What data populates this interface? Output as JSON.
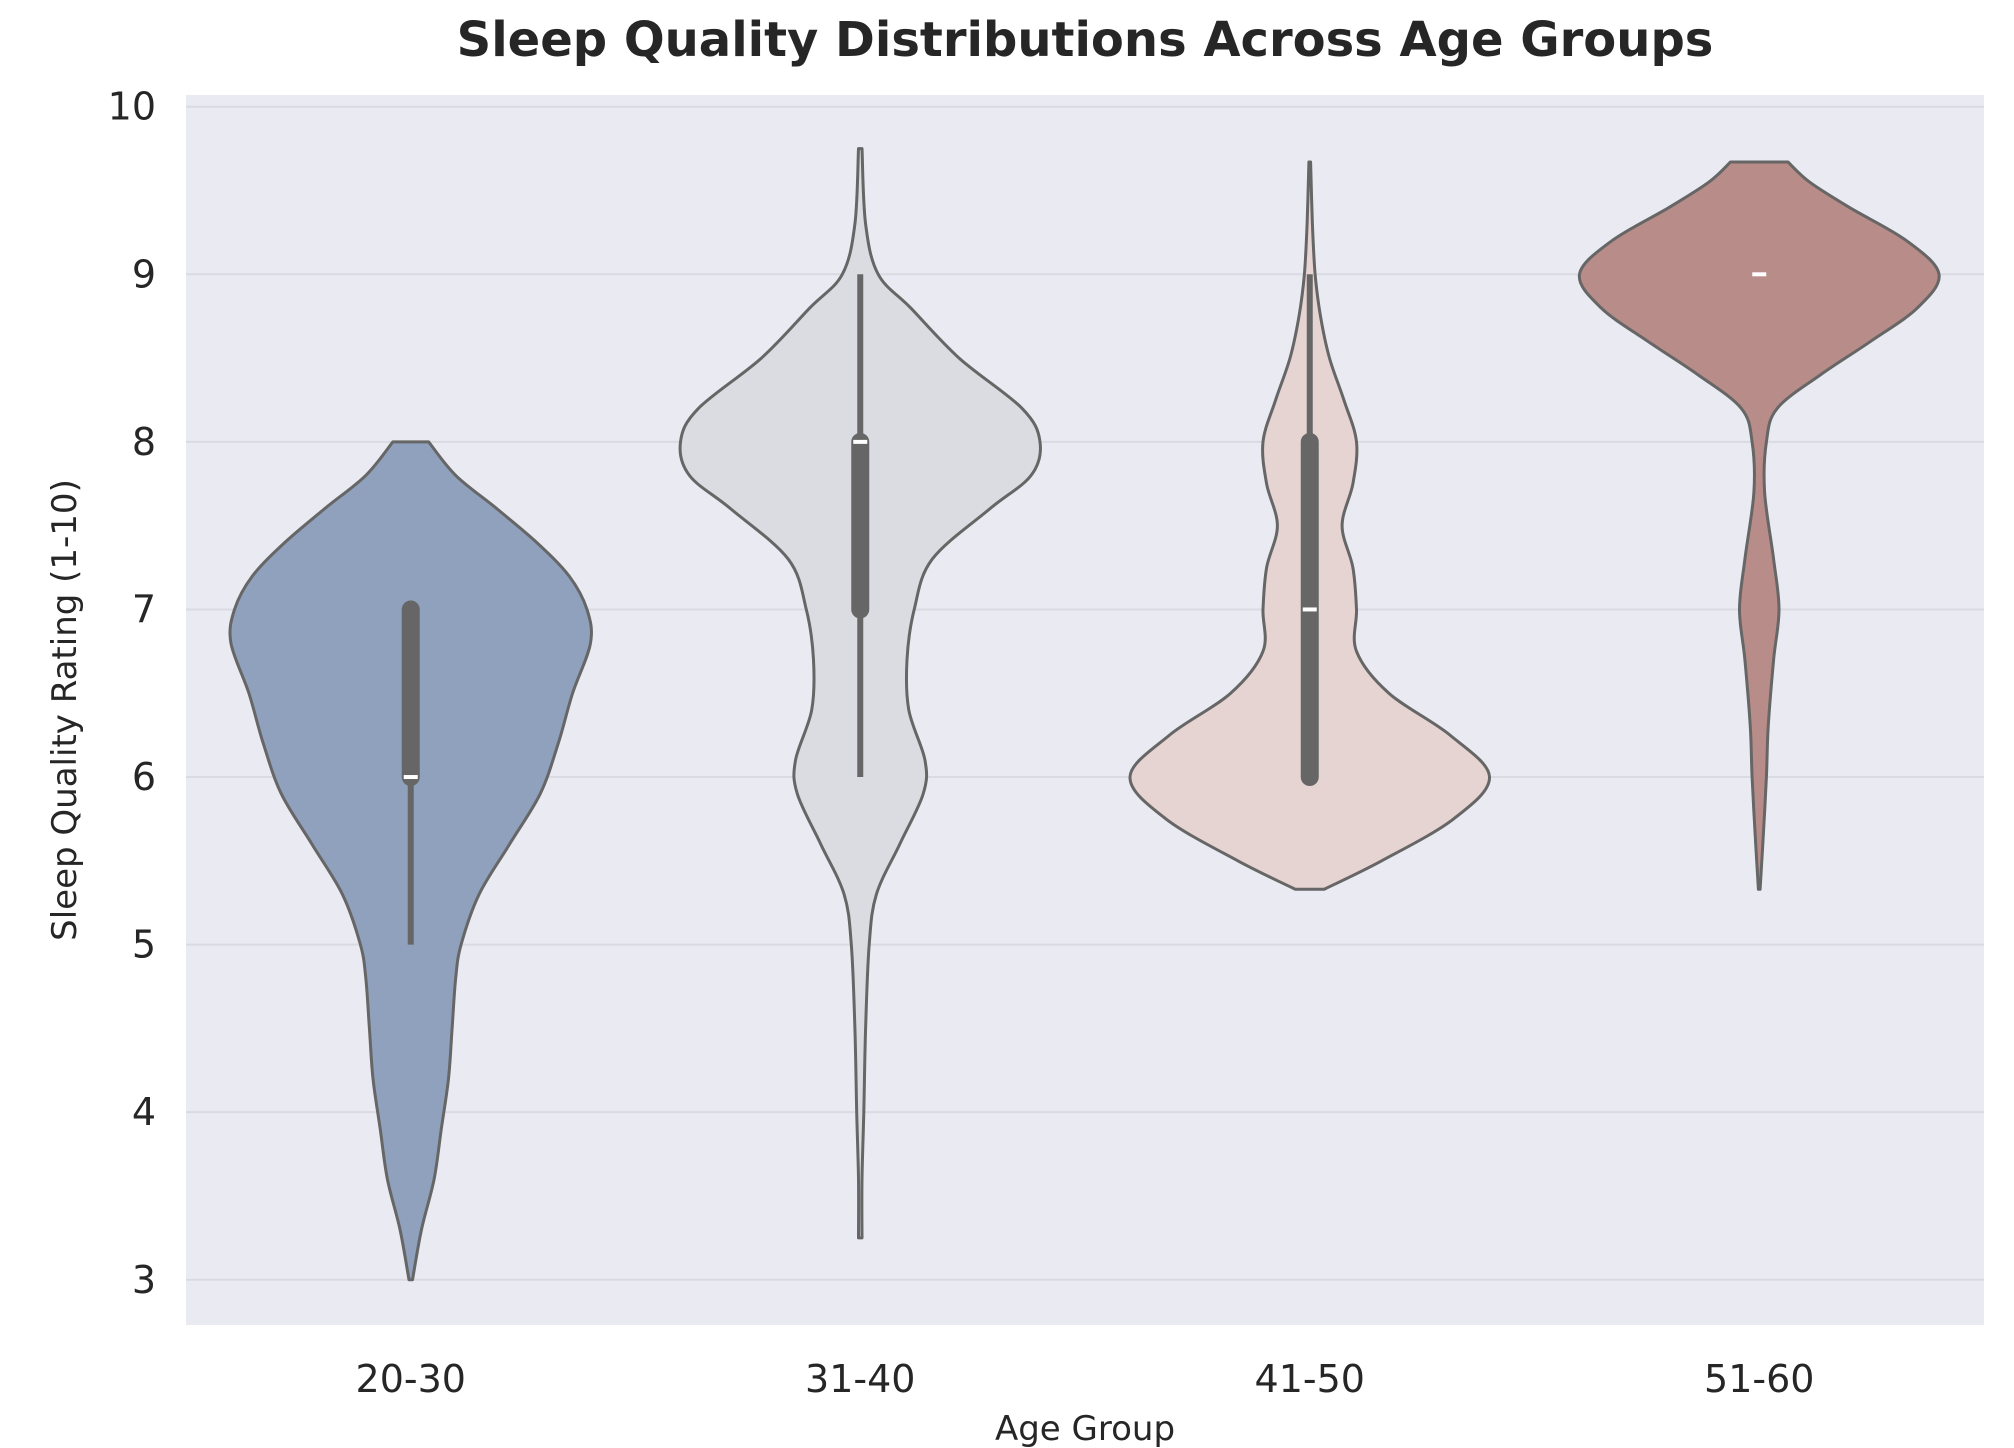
{
  "chart_data": {
    "type": "violin",
    "title": "Sleep Quality Distributions Across Age Groups",
    "xlabel": "Age Group",
    "ylabel": "Sleep Quality Rating (1-10)",
    "ylim": [
      2.73,
      10.07
    ],
    "yticks": [
      3,
      4,
      5,
      6,
      7,
      8,
      9,
      10
    ],
    "grid": "horizontal",
    "colors": {
      "plot_background": "#eaeaf2",
      "grid": "#dadae3",
      "outline": "#666666",
      "box": "#666666",
      "median": "#ffffff"
    },
    "categories": [
      {
        "label": "20-30",
        "color": "#8fa1bc",
        "min": 3.0,
        "max": 8.0,
        "q1": 6.0,
        "median": 6.0,
        "q3": 7.0,
        "whisker_low": 5.0,
        "whisker_high": 7.0,
        "density": [
          [
            3.0,
            0.01
          ],
          [
            3.3,
            0.06
          ],
          [
            3.6,
            0.13
          ],
          [
            3.9,
            0.17
          ],
          [
            4.2,
            0.21
          ],
          [
            4.5,
            0.23
          ],
          [
            4.8,
            0.25
          ],
          [
            5.0,
            0.28
          ],
          [
            5.3,
            0.38
          ],
          [
            5.6,
            0.55
          ],
          [
            5.9,
            0.72
          ],
          [
            6.2,
            0.82
          ],
          [
            6.5,
            0.9
          ],
          [
            6.8,
            1.0
          ],
          [
            7.0,
            0.98
          ],
          [
            7.2,
            0.88
          ],
          [
            7.4,
            0.7
          ],
          [
            7.6,
            0.48
          ],
          [
            7.8,
            0.25
          ],
          [
            8.0,
            0.1
          ]
        ]
      },
      {
        "label": "31-40",
        "color": "#dbdce1",
        "min": 3.25,
        "max": 9.75,
        "q1": 7.0,
        "median": 8.0,
        "q3": 8.0,
        "whisker_low": 6.0,
        "whisker_high": 9.0,
        "density": [
          [
            3.25,
            0.01
          ],
          [
            3.6,
            0.01
          ],
          [
            4.0,
            0.02
          ],
          [
            4.5,
            0.03
          ],
          [
            5.0,
            0.05
          ],
          [
            5.3,
            0.09
          ],
          [
            5.6,
            0.22
          ],
          [
            5.9,
            0.35
          ],
          [
            6.1,
            0.36
          ],
          [
            6.4,
            0.27
          ],
          [
            6.7,
            0.26
          ],
          [
            7.0,
            0.3
          ],
          [
            7.3,
            0.4
          ],
          [
            7.6,
            0.72
          ],
          [
            7.8,
            0.95
          ],
          [
            8.0,
            1.0
          ],
          [
            8.2,
            0.9
          ],
          [
            8.5,
            0.55
          ],
          [
            8.8,
            0.28
          ],
          [
            9.0,
            0.1
          ],
          [
            9.3,
            0.03
          ],
          [
            9.75,
            0.01
          ]
        ]
      },
      {
        "label": "41-50",
        "color": "#e6d4d2",
        "min": 5.33,
        "max": 9.67,
        "q1": 6.0,
        "median": 7.0,
        "q3": 8.0,
        "whisker_low": 6.0,
        "whisker_high": 9.0,
        "density": [
          [
            5.33,
            0.08
          ],
          [
            5.5,
            0.4
          ],
          [
            5.75,
            0.8
          ],
          [
            6.0,
            1.0
          ],
          [
            6.25,
            0.78
          ],
          [
            6.5,
            0.44
          ],
          [
            6.75,
            0.26
          ],
          [
            7.0,
            0.26
          ],
          [
            7.25,
            0.24
          ],
          [
            7.5,
            0.18
          ],
          [
            7.75,
            0.24
          ],
          [
            8.0,
            0.26
          ],
          [
            8.25,
            0.19
          ],
          [
            8.5,
            0.11
          ],
          [
            8.75,
            0.06
          ],
          [
            9.0,
            0.03
          ],
          [
            9.3,
            0.015
          ],
          [
            9.67,
            0.005
          ]
        ]
      },
      {
        "label": "51-60",
        "color": "#b88c88",
        "min": 5.33,
        "max": 9.67,
        "q1": 9.0,
        "median": 9.0,
        "q3": 9.0,
        "whisker_low": 9.0,
        "whisker_high": 9.0,
        "density": [
          [
            5.33,
            0.005
          ],
          [
            5.6,
            0.02
          ],
          [
            6.0,
            0.04
          ],
          [
            6.3,
            0.05
          ],
          [
            6.7,
            0.08
          ],
          [
            7.0,
            0.11
          ],
          [
            7.3,
            0.08
          ],
          [
            7.7,
            0.03
          ],
          [
            8.0,
            0.04
          ],
          [
            8.2,
            0.1
          ],
          [
            8.4,
            0.34
          ],
          [
            8.6,
            0.62
          ],
          [
            8.8,
            0.88
          ],
          [
            9.0,
            1.0
          ],
          [
            9.2,
            0.82
          ],
          [
            9.4,
            0.5
          ],
          [
            9.55,
            0.28
          ],
          [
            9.67,
            0.16
          ]
        ]
      }
    ]
  }
}
